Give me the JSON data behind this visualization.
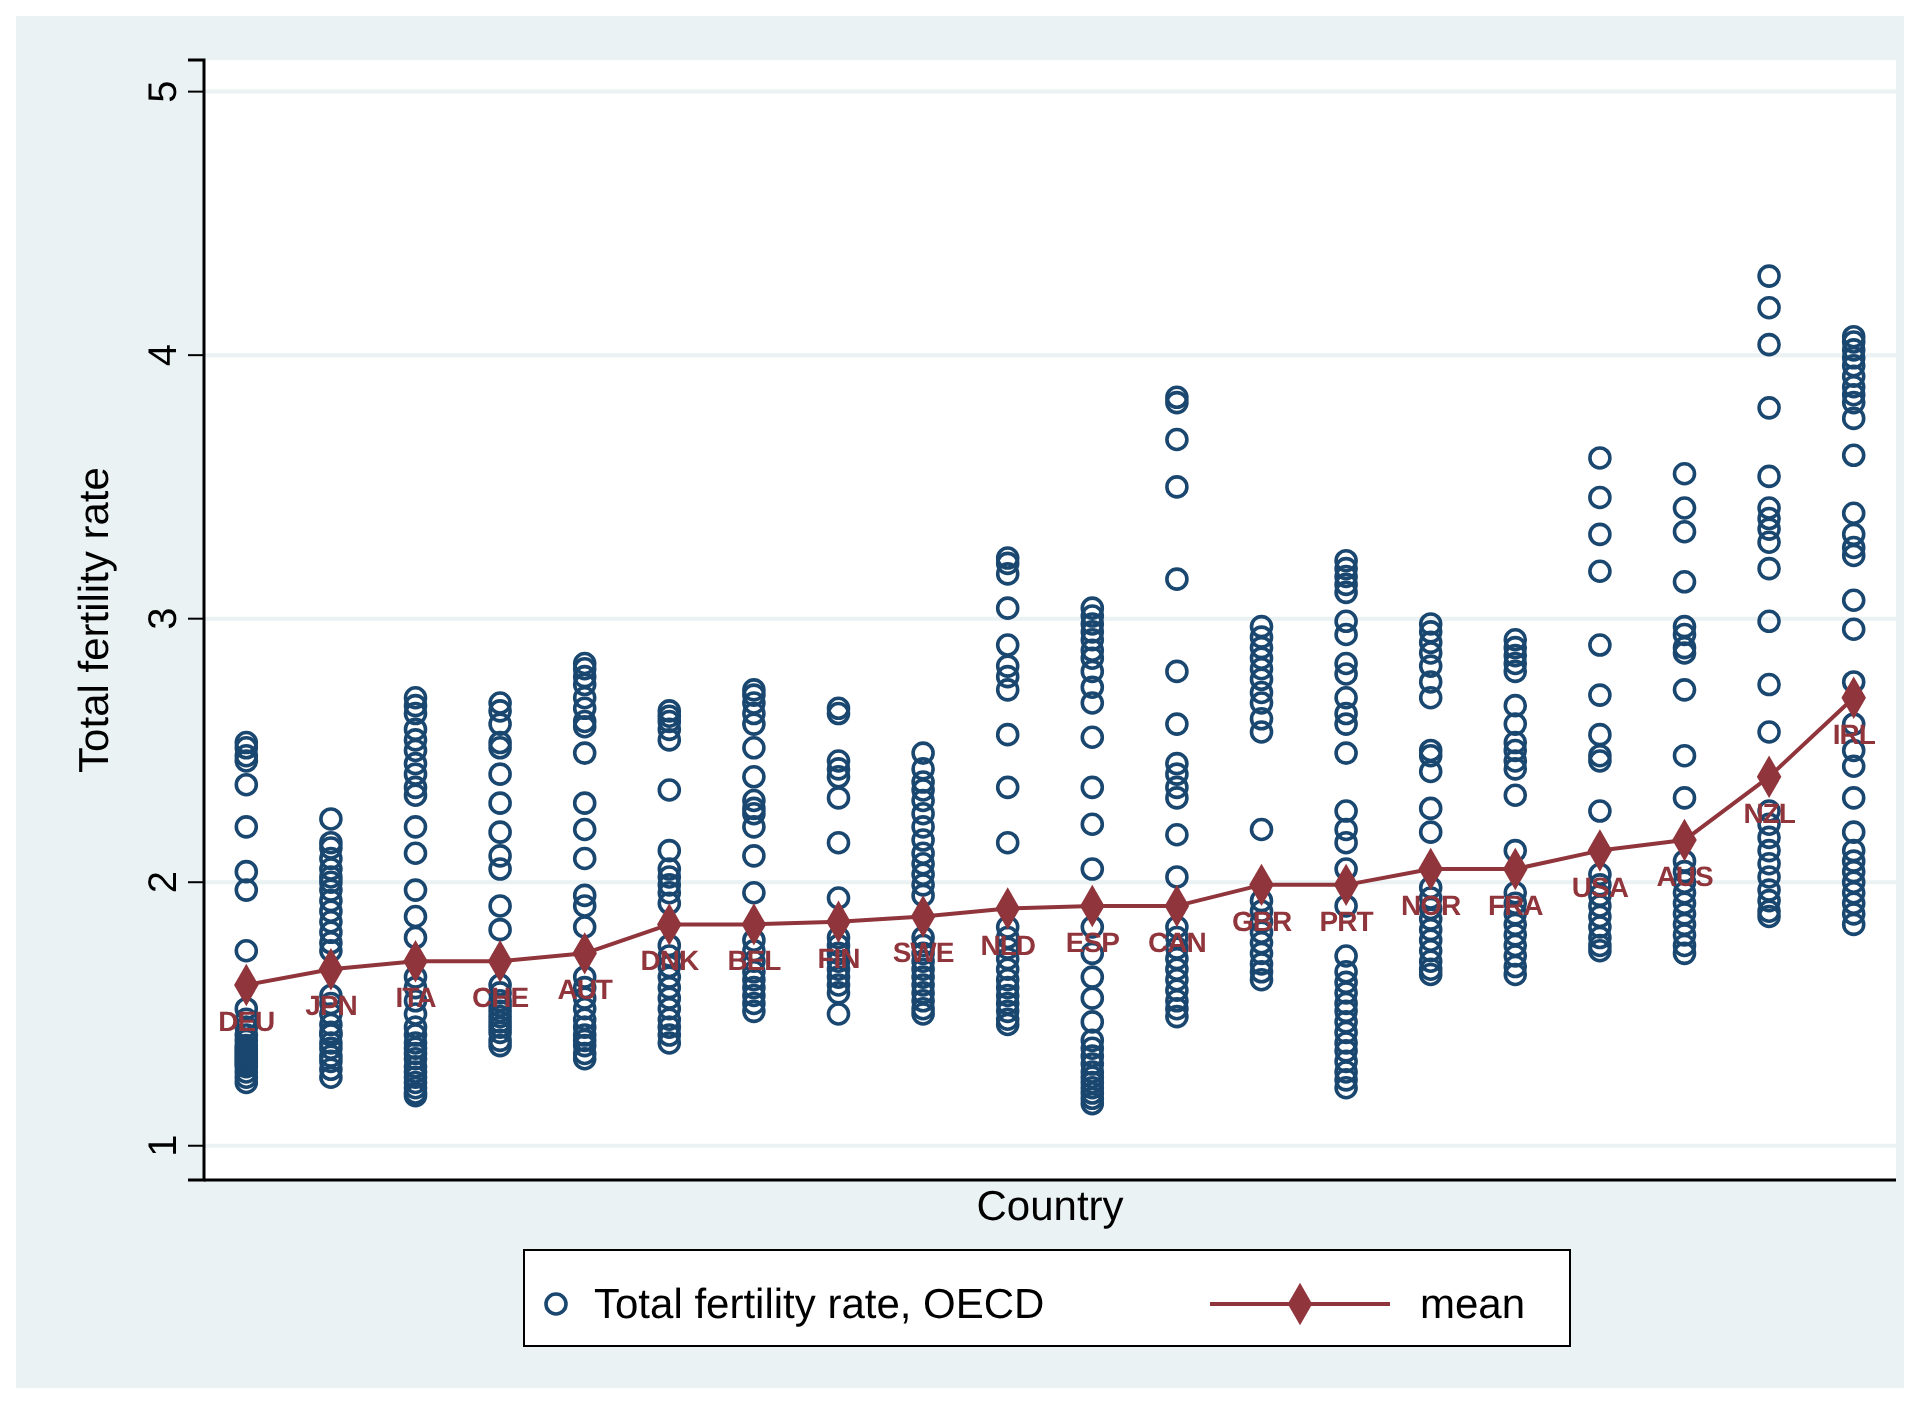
{
  "chart_data": {
    "type": "scatter",
    "xlabel": "Country",
    "ylabel": "Total fertility rate",
    "categories": [
      "DEU",
      "JPN",
      "ITA",
      "CHE",
      "AUT",
      "DNK",
      "BEL",
      "FIN",
      "SWE",
      "NLD",
      "ESP",
      "CAN",
      "GBR",
      "PRT",
      "NOR",
      "FRA",
      "USA",
      "AUS",
      "NZL",
      "IRL"
    ],
    "ylim": [
      0.87,
      5.12
    ],
    "yticks": [
      1,
      2,
      3,
      4,
      5
    ],
    "tick_labels": "y",
    "grid": "y",
    "legend": "bottom",
    "marker": "circle",
    "series": [
      {
        "name": "Total fertility rate, OECD",
        "color": "#1a476f",
        "x": [
          "DEU",
          "DEU",
          "DEU",
          "DEU",
          "DEU",
          "DEU",
          "DEU",
          "DEU",
          "DEU",
          "DEU",
          "DEU",
          "DEU",
          "DEU",
          "DEU",
          "DEU",
          "DEU",
          "DEU",
          "DEU",
          "DEU",
          "DEU",
          "DEU",
          "DEU",
          "DEU",
          "DEU",
          "DEU",
          "DEU",
          "JPN",
          "JPN",
          "JPN",
          "JPN",
          "JPN",
          "JPN",
          "JPN",
          "JPN",
          "JPN",
          "JPN",
          "JPN",
          "JPN",
          "JPN",
          "JPN",
          "JPN",
          "JPN",
          "JPN",
          "JPN",
          "JPN",
          "JPN",
          "JPN",
          "JPN",
          "JPN",
          "JPN",
          "JPN",
          "JPN",
          "ITA",
          "ITA",
          "ITA",
          "ITA",
          "ITA",
          "ITA",
          "ITA",
          "ITA",
          "ITA",
          "ITA",
          "ITA",
          "ITA",
          "ITA",
          "ITA",
          "ITA",
          "ITA",
          "ITA",
          "ITA",
          "ITA",
          "ITA",
          "ITA",
          "ITA",
          "ITA",
          "ITA",
          "ITA",
          "ITA",
          "ITA",
          "ITA",
          "ITA",
          "ITA",
          "ITA",
          "ITA",
          "CHE",
          "CHE",
          "CHE",
          "CHE",
          "CHE",
          "CHE",
          "CHE",
          "CHE",
          "CHE",
          "CHE",
          "CHE",
          "CHE",
          "CHE",
          "CHE",
          "CHE",
          "CHE",
          "CHE",
          "CHE",
          "CHE",
          "CHE",
          "CHE",
          "CHE",
          "CHE",
          "AUT",
          "AUT",
          "AUT",
          "AUT",
          "AUT",
          "AUT",
          "AUT",
          "AUT",
          "AUT",
          "AUT",
          "AUT",
          "AUT",
          "AUT",
          "AUT",
          "AUT",
          "AUT",
          "AUT",
          "AUT",
          "AUT",
          "AUT",
          "AUT",
          "AUT",
          "AUT",
          "AUT",
          "AUT",
          "AUT",
          "DNK",
          "DNK",
          "DNK",
          "DNK",
          "DNK",
          "DNK",
          "DNK",
          "DNK",
          "DNK",
          "DNK",
          "DNK",
          "DNK",
          "DNK",
          "DNK",
          "DNK",
          "DNK",
          "DNK",
          "DNK",
          "DNK",
          "DNK",
          "DNK",
          "DNK",
          "DNK",
          "BEL",
          "BEL",
          "BEL",
          "BEL",
          "BEL",
          "BEL",
          "BEL",
          "BEL",
          "BEL",
          "BEL",
          "BEL",
          "BEL",
          "BEL",
          "BEL",
          "BEL",
          "BEL",
          "BEL",
          "BEL",
          "BEL",
          "BEL",
          "BEL",
          "BEL",
          "FIN",
          "FIN",
          "FIN",
          "FIN",
          "FIN",
          "FIN",
          "FIN",
          "FIN",
          "FIN",
          "FIN",
          "FIN",
          "FIN",
          "FIN",
          "FIN",
          "FIN",
          "FIN",
          "FIN",
          "SWE",
          "SWE",
          "SWE",
          "SWE",
          "SWE",
          "SWE",
          "SWE",
          "SWE",
          "SWE",
          "SWE",
          "SWE",
          "SWE",
          "SWE",
          "SWE",
          "SWE",
          "SWE",
          "SWE",
          "SWE",
          "SWE",
          "SWE",
          "SWE",
          "SWE",
          "SWE",
          "SWE",
          "NLD",
          "NLD",
          "NLD",
          "NLD",
          "NLD",
          "NLD",
          "NLD",
          "NLD",
          "NLD",
          "NLD",
          "NLD",
          "NLD",
          "NLD",
          "NLD",
          "NLD",
          "NLD",
          "NLD",
          "NLD",
          "NLD",
          "NLD",
          "NLD",
          "NLD",
          "NLD",
          "ESP",
          "ESP",
          "ESP",
          "ESP",
          "ESP",
          "ESP",
          "ESP",
          "ESP",
          "ESP",
          "ESP",
          "ESP",
          "ESP",
          "ESP",
          "ESP",
          "ESP",
          "ESP",
          "ESP",
          "ESP",
          "ESP",
          "ESP",
          "ESP",
          "ESP",
          "ESP",
          "ESP",
          "ESP",
          "ESP",
          "ESP",
          "ESP",
          "ESP",
          "ESP",
          "CAN",
          "CAN",
          "CAN",
          "CAN",
          "CAN",
          "CAN",
          "CAN",
          "CAN",
          "CAN",
          "CAN",
          "CAN",
          "CAN",
          "CAN",
          "CAN",
          "CAN",
          "CAN",
          "CAN",
          "CAN",
          "CAN",
          "CAN",
          "CAN",
          "CAN",
          "CAN",
          "GBR",
          "GBR",
          "GBR",
          "GBR",
          "GBR",
          "GBR",
          "GBR",
          "GBR",
          "GBR",
          "GBR",
          "GBR",
          "GBR",
          "GBR",
          "GBR",
          "GBR",
          "GBR",
          "GBR",
          "GBR",
          "GBR",
          "GBR",
          "PRT",
          "PRT",
          "PRT",
          "PRT",
          "PRT",
          "PRT",
          "PRT",
          "PRT",
          "PRT",
          "PRT",
          "PRT",
          "PRT",
          "PRT",
          "PRT",
          "PRT",
          "PRT",
          "PRT",
          "PRT",
          "PRT",
          "PRT",
          "PRT",
          "PRT",
          "PRT",
          "PRT",
          "PRT",
          "PRT",
          "PRT",
          "PRT",
          "PRT",
          "PRT",
          "PRT",
          "PRT",
          "NOR",
          "NOR",
          "NOR",
          "NOR",
          "NOR",
          "NOR",
          "NOR",
          "NOR",
          "NOR",
          "NOR",
          "NOR",
          "NOR",
          "NOR",
          "NOR",
          "NOR",
          "NOR",
          "NOR",
          "NOR",
          "NOR",
          "NOR",
          "NOR",
          "NOR",
          "FRA",
          "FRA",
          "FRA",
          "FRA",
          "FRA",
          "FRA",
          "FRA",
          "FRA",
          "FRA",
          "FRA",
          "FRA",
          "FRA",
          "FRA",
          "FRA",
          "FRA",
          "FRA",
          "FRA",
          "FRA",
          "FRA",
          "FRA",
          "FRA",
          "FRA",
          "USA",
          "USA",
          "USA",
          "USA",
          "USA",
          "USA",
          "USA",
          "USA",
          "USA",
          "USA",
          "USA",
          "USA",
          "USA",
          "USA",
          "USA",
          "USA",
          "USA",
          "USA",
          "USA",
          "AUS",
          "AUS",
          "AUS",
          "AUS",
          "AUS",
          "AUS",
          "AUS",
          "AUS",
          "AUS",
          "AUS",
          "AUS",
          "AUS",
          "AUS",
          "AUS",
          "AUS",
          "AUS",
          "AUS",
          "AUS",
          "AUS",
          "AUS",
          "AUS",
          "NZL",
          "NZL",
          "NZL",
          "NZL",
          "NZL",
          "NZL",
          "NZL",
          "NZL",
          "NZL",
          "NZL",
          "NZL",
          "NZL",
          "NZL",
          "NZL",
          "NZL",
          "NZL",
          "NZL",
          "NZL",
          "NZL",
          "NZL",
          "NZL",
          "NZL",
          "NZL",
          "IRL",
          "IRL",
          "IRL",
          "IRL",
          "IRL",
          "IRL",
          "IRL",
          "IRL",
          "IRL",
          "IRL",
          "IRL",
          "IRL",
          "IRL",
          "IRL",
          "IRL",
          "IRL",
          "IRL",
          "IRL",
          "IRL",
          "IRL",
          "IRL",
          "IRL",
          "IRL",
          "IRL",
          "IRL",
          "IRL",
          "IRL",
          "IRL",
          "IRL",
          "IRL",
          "IRL"
        ],
        "values": [
          2.53,
          2.51,
          2.48,
          2.46,
          2.37,
          2.21,
          2.04,
          1.97,
          1.74,
          1.52,
          1.48,
          1.45,
          1.42,
          1.4,
          1.38,
          1.37,
          1.36,
          1.35,
          1.34,
          1.33,
          1.32,
          1.31,
          1.3,
          1.28,
          1.26,
          1.24,
          2.24,
          2.15,
          2.13,
          2.09,
          2.05,
          2.02,
          2.0,
          1.97,
          1.93,
          1.89,
          1.85,
          1.81,
          1.77,
          1.74,
          1.57,
          1.54,
          1.5,
          1.46,
          1.43,
          1.42,
          1.39,
          1.37,
          1.34,
          1.32,
          1.29,
          1.26,
          2.7,
          2.67,
          2.64,
          2.58,
          2.54,
          2.5,
          2.45,
          2.41,
          2.36,
          2.33,
          2.21,
          2.11,
          1.97,
          1.87,
          1.79,
          1.64,
          1.6,
          1.55,
          1.5,
          1.45,
          1.42,
          1.39,
          1.37,
          1.35,
          1.33,
          1.3,
          1.28,
          1.26,
          1.24,
          1.22,
          1.2,
          1.19,
          2.68,
          2.65,
          2.6,
          2.53,
          2.51,
          2.41,
          2.3,
          2.19,
          2.1,
          2.05,
          1.91,
          1.82,
          1.61,
          1.58,
          1.55,
          1.53,
          1.51,
          1.49,
          1.47,
          1.45,
          1.43,
          1.4,
          1.38,
          2.83,
          2.81,
          2.78,
          2.75,
          2.7,
          2.66,
          2.61,
          2.59,
          2.49,
          2.3,
          2.2,
          2.09,
          1.95,
          1.91,
          1.83,
          1.64,
          1.6,
          1.56,
          1.52,
          1.48,
          1.45,
          1.42,
          1.4,
          1.38,
          1.35,
          1.33,
          2.65,
          2.63,
          2.61,
          2.58,
          2.54,
          2.35,
          2.12,
          2.05,
          2.02,
          1.99,
          1.96,
          1.92,
          1.76,
          1.72,
          1.68,
          1.64,
          1.6,
          1.56,
          1.52,
          1.48,
          1.45,
          1.42,
          1.39,
          2.73,
          2.71,
          2.68,
          2.64,
          2.6,
          2.51,
          2.4,
          2.31,
          2.28,
          2.26,
          2.21,
          2.1,
          1.96,
          1.78,
          1.74,
          1.7,
          1.66,
          1.63,
          1.6,
          1.57,
          1.54,
          1.51,
          2.66,
          2.64,
          2.46,
          2.43,
          2.4,
          2.32,
          2.15,
          1.94,
          1.79,
          1.76,
          1.73,
          1.7,
          1.67,
          1.64,
          1.61,
          1.58,
          1.5,
          2.49,
          2.43,
          2.38,
          2.35,
          2.31,
          2.26,
          2.21,
          2.16,
          2.11,
          2.07,
          2.03,
          1.99,
          1.95,
          1.79,
          1.76,
          1.73,
          1.7,
          1.67,
          1.64,
          1.61,
          1.58,
          1.55,
          1.52,
          1.5,
          3.23,
          3.21,
          3.17,
          3.04,
          2.9,
          2.82,
          2.78,
          2.73,
          2.56,
          2.36,
          2.15,
          1.83,
          1.79,
          1.75,
          1.71,
          1.67,
          1.63,
          1.6,
          1.57,
          1.54,
          1.51,
          1.48,
          1.46,
          3.04,
          3.01,
          2.98,
          2.95,
          2.92,
          2.88,
          2.85,
          2.8,
          2.74,
          2.68,
          2.55,
          2.36,
          2.22,
          2.05,
          1.83,
          1.73,
          1.64,
          1.56,
          1.47,
          1.4,
          1.37,
          1.34,
          1.31,
          1.28,
          1.26,
          1.24,
          1.22,
          1.2,
          1.18,
          1.16,
          3.84,
          3.82,
          3.68,
          3.5,
          3.15,
          2.8,
          2.6,
          2.45,
          2.41,
          2.36,
          2.32,
          2.18,
          2.02,
          1.83,
          1.79,
          1.75,
          1.71,
          1.67,
          1.63,
          1.59,
          1.55,
          1.52,
          1.49,
          2.97,
          2.93,
          2.89,
          2.85,
          2.81,
          2.77,
          2.72,
          2.68,
          2.62,
          2.57,
          2.2,
          1.93,
          1.89,
          1.85,
          1.81,
          1.77,
          1.73,
          1.69,
          1.66,
          1.63,
          3.22,
          3.19,
          3.16,
          3.13,
          3.1,
          2.99,
          2.94,
          2.83,
          2.79,
          2.7,
          2.64,
          2.6,
          2.49,
          2.27,
          2.2,
          2.15,
          2.05,
          1.91,
          1.72,
          1.66,
          1.62,
          1.58,
          1.54,
          1.51,
          1.47,
          1.43,
          1.39,
          1.36,
          1.32,
          1.28,
          1.25,
          1.22,
          2.98,
          2.95,
          2.91,
          2.87,
          2.82,
          2.76,
          2.7,
          2.5,
          2.48,
          2.42,
          2.28,
          2.19,
          1.98,
          1.94,
          1.9,
          1.86,
          1.82,
          1.78,
          1.74,
          1.7,
          1.67,
          1.65,
          2.92,
          2.89,
          2.86,
          2.83,
          2.8,
          2.67,
          2.6,
          2.53,
          2.5,
          2.46,
          2.43,
          2.33,
          2.12,
          1.96,
          1.92,
          1.88,
          1.84,
          1.8,
          1.76,
          1.72,
          1.68,
          1.65,
          3.61,
          3.46,
          3.32,
          3.18,
          2.9,
          2.71,
          2.56,
          2.48,
          2.46,
          2.27,
          2.03,
          1.99,
          1.95,
          1.91,
          1.87,
          1.83,
          1.79,
          1.76,
          1.74,
          3.55,
          3.42,
          3.33,
          3.14,
          2.97,
          2.94,
          2.89,
          2.87,
          2.73,
          2.48,
          2.32,
          2.08,
          2.04,
          2.0,
          1.96,
          1.92,
          1.88,
          1.84,
          1.8,
          1.76,
          1.73,
          4.3,
          4.18,
          4.04,
          3.8,
          3.54,
          3.42,
          3.38,
          3.34,
          3.29,
          3.19,
          2.99,
          2.75,
          2.57,
          2.27,
          2.22,
          2.17,
          2.12,
          2.07,
          2.02,
          1.97,
          1.93,
          1.89,
          1.87,
          4.07,
          4.05,
          4.02,
          3.99,
          3.96,
          3.92,
          3.88,
          3.85,
          3.82,
          3.76,
          3.62,
          3.4,
          3.32,
          3.27,
          3.24,
          3.07,
          2.96,
          2.76,
          2.6,
          2.5,
          2.44,
          2.32,
          2.19,
          2.12,
          2.08,
          2.04,
          2.0,
          1.96,
          1.92,
          1.88,
          1.84
        ]
      },
      {
        "name": "mean",
        "type": "line",
        "marker": "diamond",
        "line_style": "solid",
        "color": "#90353b",
        "values": [
          1.61,
          1.67,
          1.7,
          1.7,
          1.73,
          1.84,
          1.84,
          1.85,
          1.87,
          1.9,
          1.91,
          1.91,
          1.99,
          1.99,
          2.05,
          2.05,
          2.12,
          2.16,
          2.4,
          2.7
        ]
      }
    ]
  }
}
